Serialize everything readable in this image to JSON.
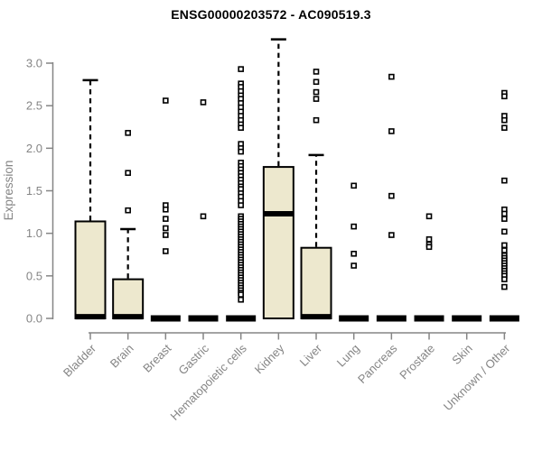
{
  "title": "ENSG00000203572 - AC090519.3",
  "colors": {
    "box_fill": "#EDE8CE",
    "box_border": "#000000",
    "median": "#000000",
    "outlier_fill": "#ffffff",
    "axis": "#858585",
    "title": "#000000",
    "background": "#ffffff"
  },
  "chart_data": {
    "type": "boxplot",
    "title": "ENSG00000203572 - AC090519.3",
    "xlabel": "",
    "ylabel": "Expression",
    "ylim": [
      0,
      3.3
    ],
    "yticks": [
      0.0,
      0.5,
      1.0,
      1.5,
      2.0,
      2.5,
      3.0
    ],
    "grid": false,
    "legend": "none",
    "categories": [
      "Bladder",
      "Brain",
      "Breast",
      "Gastric",
      "Hematopoietic cells",
      "Kidney",
      "Liver",
      "Lung",
      "Pancreas",
      "Prostate",
      "Skin",
      "Unknown / Other"
    ],
    "series": [
      {
        "category": "Bladder",
        "q1": 0,
        "median": 0.02,
        "q3": 1.14,
        "whisker_low": 0,
        "whisker_high": 2.8,
        "outliers": []
      },
      {
        "category": "Brain",
        "q1": 0,
        "median": 0.02,
        "q3": 0.46,
        "whisker_low": 0,
        "whisker_high": 1.05,
        "outliers": [
          2.18,
          1.71,
          1.27
        ]
      },
      {
        "category": "Breast",
        "q1": 0,
        "median": 0,
        "q3": 0,
        "whisker_low": 0,
        "whisker_high": 0,
        "outliers": [
          2.56,
          1.33,
          1.28,
          1.17,
          1.06,
          0.98,
          0.79
        ]
      },
      {
        "category": "Gastric",
        "q1": 0,
        "median": 0,
        "q3": 0,
        "whisker_low": 0,
        "whisker_high": 0,
        "outliers": [
          2.54,
          1.2
        ]
      },
      {
        "category": "Hematopoietic cells",
        "q1": 0,
        "median": 0,
        "q3": 0,
        "whisker_low": 0,
        "whisker_high": 0,
        "outliers": [
          2.93,
          2.76,
          2.72,
          2.67,
          2.62,
          2.58,
          2.53,
          2.48,
          2.43,
          2.38,
          2.33,
          2.28,
          2.24,
          2.05,
          2.0,
          1.96,
          1.83,
          1.79,
          1.75,
          1.71,
          1.67,
          1.63,
          1.59,
          1.55,
          1.52,
          1.47,
          1.43,
          1.38,
          1.33,
          1.2,
          1.17,
          1.14,
          1.11,
          1.08,
          1.05,
          1.02,
          0.99,
          0.96,
          0.93,
          0.9,
          0.87,
          0.84,
          0.81,
          0.78,
          0.75,
          0.72,
          0.69,
          0.66,
          0.63,
          0.6,
          0.57,
          0.54,
          0.51,
          0.48,
          0.45,
          0.42,
          0.39,
          0.36,
          0.33,
          0.3,
          0.28,
          0.22
        ]
      },
      {
        "category": "Kidney",
        "q1": 0,
        "median": 1.23,
        "q3": 1.78,
        "whisker_low": 0,
        "whisker_high": 3.28,
        "outliers": []
      },
      {
        "category": "Liver",
        "q1": 0,
        "median": 0.02,
        "q3": 0.83,
        "whisker_low": 0,
        "whisker_high": 1.92,
        "outliers": [
          2.9,
          2.78,
          2.66,
          2.58,
          2.33
        ]
      },
      {
        "category": "Lung",
        "q1": 0,
        "median": 0,
        "q3": 0,
        "whisker_low": 0,
        "whisker_high": 0,
        "outliers": [
          1.56,
          1.08,
          0.76,
          0.62
        ]
      },
      {
        "category": "Pancreas",
        "q1": 0,
        "median": 0,
        "q3": 0,
        "whisker_low": 0,
        "whisker_high": 0,
        "outliers": [
          2.84,
          2.2,
          1.44,
          0.98
        ]
      },
      {
        "category": "Prostate",
        "q1": 0,
        "median": 0,
        "q3": 0,
        "whisker_low": 0,
        "whisker_high": 0,
        "outliers": [
          1.2,
          0.93,
          0.87,
          0.84
        ]
      },
      {
        "category": "Skin",
        "q1": 0,
        "median": 0,
        "q3": 0,
        "whisker_low": 0,
        "whisker_high": 0,
        "outliers": []
      },
      {
        "category": "Unknown / Other",
        "q1": 0,
        "median": 0,
        "q3": 0,
        "whisker_low": 0,
        "whisker_high": 0,
        "outliers": [
          2.65,
          2.61,
          2.38,
          2.33,
          2.24,
          1.62,
          1.28,
          1.23,
          1.17,
          1.02,
          0.86,
          0.8,
          0.74,
          0.71,
          0.68,
          0.65,
          0.62,
          0.59,
          0.56,
          0.53,
          0.5,
          0.46,
          0.37
        ]
      }
    ]
  }
}
